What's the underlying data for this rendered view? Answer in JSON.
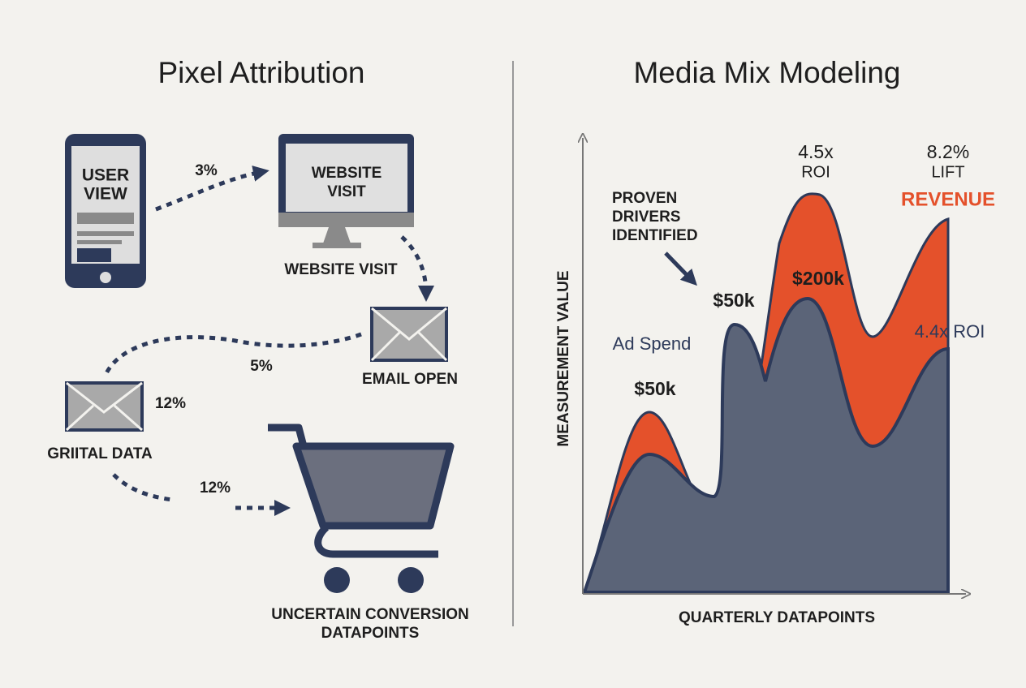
{
  "left": {
    "title": "Pixel Attribution",
    "phone_label": [
      "USER",
      "VIEW"
    ],
    "monitor_label": [
      "WEBSITE",
      "VISIT"
    ],
    "nodes": [
      "WEBSITE VISIT",
      "EMAIL OPEN",
      "GRIITAL DATA"
    ],
    "cart_label": [
      "UNCERTAIN CONVERSION",
      "DATAPOINTS"
    ],
    "edge_labels": [
      "3%",
      "5%",
      "12%",
      "12%"
    ]
  },
  "right": {
    "title": "Media Mix Modeling",
    "y_axis_label": "MEASUREMENT VALUE",
    "x_axis_label": "QUARTERLY DATAPOINTS",
    "callout": [
      "PROVEN",
      "DRIVERS",
      "IDENTIFIED"
    ],
    "annotations": [
      "$50k",
      "Ad Spend",
      "$50k",
      "$200k",
      "4.4x ROI"
    ],
    "roi_top": [
      "4.5x",
      "ROI"
    ],
    "lift_top": [
      "8.2%",
      "LIFT"
    ],
    "revenue_label": "REVENUE"
  }
}
